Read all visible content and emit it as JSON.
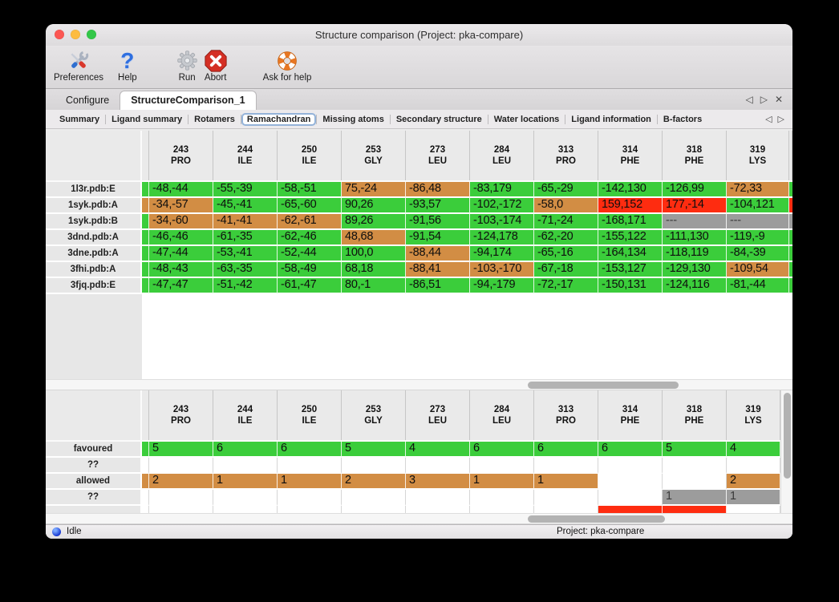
{
  "window_title": "Structure comparison (Project: pka-compare)",
  "toolbar": {
    "items": [
      {
        "label": "Preferences"
      },
      {
        "label": "Help"
      },
      {
        "label": "Run"
      },
      {
        "label": "Abort"
      },
      {
        "label": "Ask for help"
      }
    ]
  },
  "tabs": {
    "items": [
      {
        "label": "Configure",
        "active": false
      },
      {
        "label": "StructureComparison_1",
        "active": true
      }
    ],
    "controls": {
      "prev": "◁",
      "next": "▷",
      "close": "✕"
    }
  },
  "subtabs": {
    "items": [
      "Summary",
      "Ligand summary",
      "Rotamers",
      "Ramachandran",
      "Missing atoms",
      "Secondary structure",
      "Water locations",
      "Ligand information",
      "B-factors"
    ],
    "active": "Ramachandran",
    "controls": {
      "prev": "◁",
      "next": "▷"
    }
  },
  "columns": [
    {
      "num": "243",
      "res": "PRO"
    },
    {
      "num": "244",
      "res": "ILE"
    },
    {
      "num": "250",
      "res": "ILE"
    },
    {
      "num": "253",
      "res": "GLY"
    },
    {
      "num": "273",
      "res": "LEU"
    },
    {
      "num": "284",
      "res": "LEU"
    },
    {
      "num": "313",
      "res": "PRO"
    },
    {
      "num": "314",
      "res": "PHE"
    },
    {
      "num": "318",
      "res": "PHE"
    },
    {
      "num": "319",
      "res": "LYS"
    }
  ],
  "legend_colors": {
    "g": "#3bcd3b",
    "o": "#d28d44",
    "r": "#fe2c10",
    "x": "#9c9c9c",
    "w": "#ffffff"
  },
  "traffic_lights": {
    "close": "#fc5753",
    "minimize": "#fdbc40",
    "maximize": "#33c748"
  },
  "top_table": {
    "rows": [
      {
        "label": "1l3r.pdb:E",
        "left": "g",
        "right": "g",
        "cells": [
          [
            "-48,-44",
            "g"
          ],
          [
            "-55,-39",
            "g"
          ],
          [
            "-58,-51",
            "g"
          ],
          [
            "75,-24",
            "o"
          ],
          [
            "-86,48",
            "o"
          ],
          [
            "-83,179",
            "g"
          ],
          [
            "-65,-29",
            "g"
          ],
          [
            "-142,130",
            "g"
          ],
          [
            "-126,99",
            "g"
          ],
          [
            "-72,33",
            "o"
          ]
        ]
      },
      {
        "label": "1syk.pdb:A",
        "left": "o",
        "right": "r",
        "cells": [
          [
            "-34,-57",
            "o"
          ],
          [
            "-45,-41",
            "g"
          ],
          [
            "-65,-60",
            "g"
          ],
          [
            "90,26",
            "g"
          ],
          [
            "-93,57",
            "g"
          ],
          [
            "-102,-172",
            "g"
          ],
          [
            "-58,0",
            "o"
          ],
          [
            "159,152",
            "r"
          ],
          [
            "177,-14",
            "r"
          ],
          [
            "-104,121",
            "g"
          ]
        ]
      },
      {
        "label": "1syk.pdb:B",
        "left": "g",
        "right": "x",
        "cells": [
          [
            "-34,-60",
            "o"
          ],
          [
            "-41,-41",
            "o"
          ],
          [
            "-62,-61",
            "o"
          ],
          [
            "89,26",
            "g"
          ],
          [
            "-91,56",
            "g"
          ],
          [
            "-103,-174",
            "g"
          ],
          [
            "-71,-24",
            "g"
          ],
          [
            "-168,171",
            "g"
          ],
          [
            "---",
            "x"
          ],
          [
            "---",
            "x"
          ]
        ]
      },
      {
        "label": "3dnd.pdb:A",
        "left": "g",
        "right": "g",
        "cells": [
          [
            "-46,-46",
            "g"
          ],
          [
            "-61,-35",
            "g"
          ],
          [
            "-62,-46",
            "g"
          ],
          [
            "48,68",
            "o"
          ],
          [
            "-91,54",
            "g"
          ],
          [
            "-124,178",
            "g"
          ],
          [
            "-62,-20",
            "g"
          ],
          [
            "-155,122",
            "g"
          ],
          [
            "-111,130",
            "g"
          ],
          [
            "-119,-9",
            "g"
          ]
        ]
      },
      {
        "label": "3dne.pdb:A",
        "left": "g",
        "right": "g",
        "cells": [
          [
            "-47,-44",
            "g"
          ],
          [
            "-53,-41",
            "g"
          ],
          [
            "-52,-44",
            "g"
          ],
          [
            "100,0",
            "g"
          ],
          [
            "-88,44",
            "o"
          ],
          [
            "-94,174",
            "g"
          ],
          [
            "-65,-16",
            "g"
          ],
          [
            "-164,134",
            "g"
          ],
          [
            "-118,119",
            "g"
          ],
          [
            "-84,-39",
            "g"
          ]
        ]
      },
      {
        "label": "3fhi.pdb:A",
        "left": "g",
        "right": "g",
        "cells": [
          [
            "-48,-43",
            "g"
          ],
          [
            "-63,-35",
            "g"
          ],
          [
            "-58,-49",
            "g"
          ],
          [
            "68,18",
            "g"
          ],
          [
            "-88,41",
            "o"
          ],
          [
            "-103,-170",
            "o"
          ],
          [
            "-67,-18",
            "g"
          ],
          [
            "-153,127",
            "g"
          ],
          [
            "-129,130",
            "g"
          ],
          [
            "-109,54",
            "o"
          ]
        ]
      },
      {
        "label": "3fjq.pdb:E",
        "left": "g",
        "right": "g",
        "cells": [
          [
            "-47,-47",
            "g"
          ],
          [
            "-51,-42",
            "g"
          ],
          [
            "-61,-47",
            "g"
          ],
          [
            "80,-1",
            "g"
          ],
          [
            "-86,51",
            "g"
          ],
          [
            "-94,-179",
            "g"
          ],
          [
            "-72,-17",
            "g"
          ],
          [
            "-150,131",
            "g"
          ],
          [
            "-124,116",
            "g"
          ],
          [
            "-81,-44",
            "g"
          ]
        ]
      }
    ]
  },
  "bottom_table": {
    "rows": [
      {
        "label": "favoured",
        "left": "g",
        "cells": [
          [
            "5",
            "g"
          ],
          [
            "6",
            "g"
          ],
          [
            "6",
            "g"
          ],
          [
            "5",
            "g"
          ],
          [
            "4",
            "g"
          ],
          [
            "6",
            "g"
          ],
          [
            "6",
            "g"
          ],
          [
            "6",
            "g"
          ],
          [
            "5",
            "g"
          ],
          [
            "4",
            "g"
          ]
        ]
      },
      {
        "label": "??",
        "left": "w",
        "cells": [
          [
            "",
            "w"
          ],
          [
            "",
            "w"
          ],
          [
            "",
            "w"
          ],
          [
            "",
            "w"
          ],
          [
            "",
            "w"
          ],
          [
            "",
            "w"
          ],
          [
            "",
            "w"
          ],
          [
            "",
            "w"
          ],
          [
            "",
            "w"
          ],
          [
            "",
            "w"
          ]
        ]
      },
      {
        "label": "allowed",
        "left": "o",
        "cells": [
          [
            "2",
            "o"
          ],
          [
            "1",
            "o"
          ],
          [
            "1",
            "o"
          ],
          [
            "2",
            "o"
          ],
          [
            "3",
            "o"
          ],
          [
            "1",
            "o"
          ],
          [
            "1",
            "o"
          ],
          [
            "",
            "w"
          ],
          [
            "",
            "w"
          ],
          [
            "2",
            "o"
          ]
        ]
      },
      {
        "label": "??",
        "left": "w",
        "cells": [
          [
            "",
            "w"
          ],
          [
            "",
            "w"
          ],
          [
            "",
            "w"
          ],
          [
            "",
            "w"
          ],
          [
            "",
            "w"
          ],
          [
            "",
            "w"
          ],
          [
            "",
            "w"
          ],
          [
            "",
            "w"
          ],
          [
            "1",
            "x"
          ],
          [
            "1",
            "x"
          ]
        ]
      },
      {
        "label": "",
        "left": "w",
        "cells": [
          [
            "",
            "w"
          ],
          [
            "",
            "w"
          ],
          [
            "",
            "w"
          ],
          [
            "",
            "w"
          ],
          [
            "",
            "w"
          ],
          [
            "",
            "w"
          ],
          [
            "",
            "w"
          ],
          [
            "",
            "r"
          ],
          [
            "",
            "r"
          ],
          [
            "",
            "w"
          ]
        ]
      }
    ]
  },
  "statusbar": {
    "status": "Idle",
    "project": "Project: pka-compare"
  }
}
